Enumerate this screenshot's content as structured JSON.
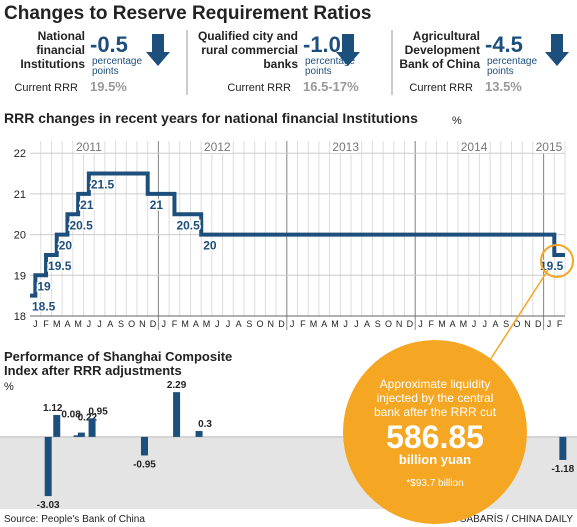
{
  "title": "Changes to Reserve Requirement Ratios",
  "panels": [
    {
      "label": [
        "National",
        "financial",
        "Institutions"
      ],
      "change": "-0.5",
      "unit": [
        "percentage",
        "points"
      ],
      "current_label": "Current RRR",
      "current": "19.5%"
    },
    {
      "label": [
        "Qualified city and",
        "rural commercial",
        "banks"
      ],
      "change": "-1.0",
      "unit": [
        "percentage",
        "points"
      ],
      "current_label": "Current RRR",
      "current": "16.5-17%"
    },
    {
      "label": [
        "Agricultural",
        "Development",
        "Bank of China"
      ],
      "change": "-4.5",
      "unit": [
        "percentage",
        "points"
      ],
      "current_label": "Current RRR",
      "current": "13.5%"
    }
  ],
  "chart_data": [
    {
      "type": "step",
      "title": "RRR changes in recent years for national financial Institutions",
      "y_unit": "%",
      "categories": [
        "J",
        "F",
        "M",
        "A",
        "M",
        "J",
        "J",
        "A",
        "S",
        "O",
        "N",
        "D",
        "J",
        "F",
        "M",
        "A",
        "M",
        "J",
        "J",
        "A",
        "S",
        "O",
        "N",
        "D",
        "J",
        "F",
        "M",
        "A",
        "M",
        "J",
        "J",
        "A",
        "S",
        "O",
        "N",
        "D",
        "J",
        "F",
        "M",
        "A",
        "M",
        "J",
        "J",
        "A",
        "S",
        "O",
        "N",
        "D",
        "J",
        "F"
      ],
      "x": [
        0,
        0.5,
        1.5,
        2.5,
        3.5,
        4.5,
        5.5,
        11,
        13.5,
        16,
        49
      ],
      "values": [
        18.5,
        19,
        19.5,
        20,
        20.5,
        21,
        21.5,
        21,
        20.5,
        20,
        19.5
      ],
      "xlim": [
        0,
        50
      ],
      "ylim": [
        18,
        22.3
      ],
      "yticks": [
        18,
        19,
        20,
        21,
        22
      ],
      "xticks": [
        {
          "value": 5.5,
          "label": "2011"
        },
        {
          "value": 17.5,
          "label": "2012"
        },
        {
          "value": 29.5,
          "label": "2013"
        },
        {
          "value": 41.5,
          "label": "2014"
        },
        {
          "value": 48.5,
          "label": "2015"
        }
      ],
      "color": "#1d4f7c",
      "grid": true
    },
    {
      "type": "bar",
      "title": [
        "Performance of Shanghai Composite",
        "Index after RRR adjustments"
      ],
      "y_unit": "%",
      "x": [
        1.7,
        2.5,
        4.4,
        4.8,
        5.8,
        10.7,
        13.7,
        15.8,
        49.8
      ],
      "values": [
        -3.03,
        1.12,
        0.08,
        0.22,
        0.95,
        -0.95,
        2.29,
        0.3,
        -1.18
      ],
      "xlim": [
        0,
        50
      ],
      "ylim": [
        -3.2,
        2.4
      ],
      "color": "#1d4f7c"
    }
  ],
  "callout": {
    "text": [
      "Approximate liquidity",
      "injected by the central",
      "bank after the RRR cut"
    ],
    "amount": "586.85",
    "unit": "billion yuan",
    "note": "*$93.7 billion"
  },
  "source": "Source: People's Bank of China",
  "credit": "XAN SABARÍS / CHINA DAILY"
}
